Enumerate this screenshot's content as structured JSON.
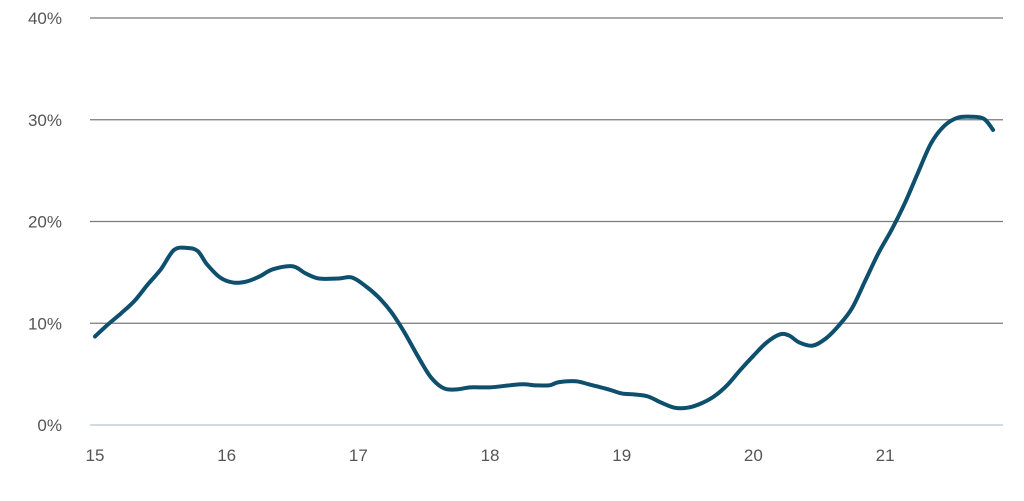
{
  "chart_data": {
    "type": "line",
    "title": "",
    "xlabel": "",
    "ylabel": "",
    "xlim": [
      15,
      21.85
    ],
    "ylim": [
      0,
      40
    ],
    "grid": true,
    "x_ticks": [
      15,
      16,
      17,
      18,
      19,
      20,
      21
    ],
    "x_tick_labels": [
      "15",
      "16",
      "17",
      "18",
      "19",
      "20",
      "21"
    ],
    "y_ticks": [
      0,
      10,
      20,
      30,
      40
    ],
    "y_tick_labels": [
      "0%",
      "10%",
      "20%",
      "30%",
      "40%"
    ],
    "series": [
      {
        "color": "#0d4f6c",
        "points": [
          [
            15.0,
            8.7
          ],
          [
            15.1,
            9.9
          ],
          [
            15.2,
            11.0
          ],
          [
            15.3,
            12.2
          ],
          [
            15.4,
            13.8
          ],
          [
            15.5,
            15.3
          ],
          [
            15.6,
            17.2
          ],
          [
            15.7,
            17.4
          ],
          [
            15.78,
            17.1
          ],
          [
            15.85,
            15.8
          ],
          [
            15.95,
            14.5
          ],
          [
            16.05,
            14.0
          ],
          [
            16.15,
            14.1
          ],
          [
            16.25,
            14.6
          ],
          [
            16.35,
            15.3
          ],
          [
            16.5,
            15.6
          ],
          [
            16.6,
            14.9
          ],
          [
            16.7,
            14.4
          ],
          [
            16.85,
            14.4
          ],
          [
            16.95,
            14.5
          ],
          [
            17.05,
            13.7
          ],
          [
            17.15,
            12.6
          ],
          [
            17.25,
            11.1
          ],
          [
            17.35,
            9.1
          ],
          [
            17.45,
            6.8
          ],
          [
            17.55,
            4.7
          ],
          [
            17.65,
            3.6
          ],
          [
            17.75,
            3.5
          ],
          [
            17.85,
            3.7
          ],
          [
            18.0,
            3.7
          ],
          [
            18.15,
            3.9
          ],
          [
            18.25,
            4.0
          ],
          [
            18.35,
            3.9
          ],
          [
            18.45,
            3.9
          ],
          [
            18.52,
            4.2
          ],
          [
            18.65,
            4.3
          ],
          [
            18.75,
            4.0
          ],
          [
            18.9,
            3.5
          ],
          [
            19.0,
            3.1
          ],
          [
            19.1,
            3.0
          ],
          [
            19.2,
            2.8
          ],
          [
            19.3,
            2.2
          ],
          [
            19.4,
            1.7
          ],
          [
            19.5,
            1.7
          ],
          [
            19.6,
            2.1
          ],
          [
            19.7,
            2.8
          ],
          [
            19.8,
            3.9
          ],
          [
            19.9,
            5.4
          ],
          [
            20.0,
            6.8
          ],
          [
            20.1,
            8.1
          ],
          [
            20.2,
            8.9
          ],
          [
            20.27,
            8.8
          ],
          [
            20.35,
            8.1
          ],
          [
            20.45,
            7.8
          ],
          [
            20.55,
            8.5
          ],
          [
            20.65,
            9.8
          ],
          [
            20.75,
            11.5
          ],
          [
            20.85,
            14.2
          ],
          [
            20.95,
            16.9
          ],
          [
            21.05,
            19.2
          ],
          [
            21.15,
            21.8
          ],
          [
            21.25,
            24.8
          ],
          [
            21.35,
            27.7
          ],
          [
            21.45,
            29.4
          ],
          [
            21.55,
            30.2
          ],
          [
            21.65,
            30.3
          ],
          [
            21.75,
            30.1
          ],
          [
            21.82,
            29.0
          ]
        ]
      }
    ]
  }
}
